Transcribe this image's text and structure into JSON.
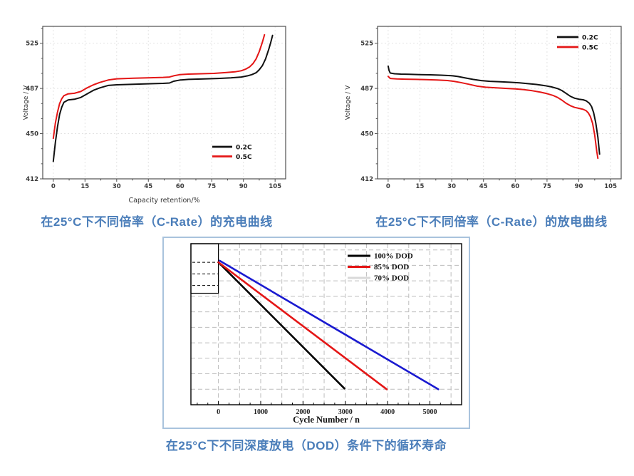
{
  "page": {
    "background": "#ffffff"
  },
  "captions": {
    "charge": "在25°C下不同倍率（C-Rate）的充电曲线",
    "discharge": "在25°C下不同倍率（C-Rate）的放电曲线",
    "cycle_life": "在25°C下不同深度放电（DOD）条件下的循环寿命",
    "color": "#4a7db9"
  },
  "chart_data": [
    {
      "id": "charge-chart",
      "type": "line",
      "title": "在25°C下不同倍率（C-Rate）的充电曲线",
      "xlabel": "Capacity retention/%",
      "ylabel": "Voltage / V",
      "xlim": [
        -5,
        110
      ],
      "ylim": [
        412.5,
        539
      ],
      "xticks": [
        0,
        15,
        30,
        45,
        60,
        75,
        90,
        105
      ],
      "yticks": [
        {
          "v": 412.5,
          "label": "412"
        },
        {
          "v": 450,
          "label": "450"
        },
        {
          "v": 487.5,
          "label": "487"
        },
        {
          "v": 525,
          "label": "525"
        }
      ],
      "grid": true,
      "legend_position": "bottom-right",
      "series": [
        {
          "name": "0.2C",
          "color": "#111111",
          "points": [
            [
              0,
              427
            ],
            [
              1,
              443
            ],
            [
              2,
              456
            ],
            [
              3,
              466
            ],
            [
              4,
              472
            ],
            [
              5,
              476
            ],
            [
              7,
              478
            ],
            [
              10,
              478.5
            ],
            [
              13,
              480
            ],
            [
              16,
              483
            ],
            [
              19,
              486
            ],
            [
              22,
              488
            ],
            [
              26,
              490
            ],
            [
              30,
              490.5
            ],
            [
              38,
              491
            ],
            [
              46,
              491.4
            ],
            [
              52,
              491.7
            ],
            [
              55,
              492
            ],
            [
              57,
              493.5
            ],
            [
              60,
              494.5
            ],
            [
              64,
              495
            ],
            [
              70,
              495.3
            ],
            [
              78,
              495.8
            ],
            [
              84,
              496.3
            ],
            [
              89,
              497
            ],
            [
              92,
              498
            ],
            [
              94,
              499
            ],
            [
              96,
              500.5
            ],
            [
              97.5,
              503
            ],
            [
              99,
              506.5
            ],
            [
              100.5,
              512
            ],
            [
              102,
              520
            ],
            [
              103,
              526
            ],
            [
              103.8,
              531.5
            ]
          ]
        },
        {
          "name": "0.5C",
          "color": "#e41616",
          "points": [
            [
              0,
              446
            ],
            [
              1,
              459
            ],
            [
              2,
              468
            ],
            [
              3,
              475
            ],
            [
              4,
              479
            ],
            [
              5,
              481.5
            ],
            [
              7,
              483
            ],
            [
              10,
              483.5
            ],
            [
              13,
              485
            ],
            [
              16,
              488
            ],
            [
              19,
              490.5
            ],
            [
              22,
              492.5
            ],
            [
              26,
              494.5
            ],
            [
              30,
              495.5
            ],
            [
              38,
              496
            ],
            [
              46,
              496.4
            ],
            [
              52,
              496.7
            ],
            [
              55,
              497
            ],
            [
              57,
              498
            ],
            [
              60,
              499
            ],
            [
              64,
              499.4
            ],
            [
              70,
              499.7
            ],
            [
              76,
              500
            ],
            [
              82,
              500.7
            ],
            [
              86,
              501.3
            ],
            [
              89,
              502.2
            ],
            [
              91,
              503.5
            ],
            [
              93,
              505.5
            ],
            [
              94.5,
              508
            ],
            [
              96,
              512
            ],
            [
              97.5,
              518
            ],
            [
              99,
              526
            ],
            [
              100,
              532
            ]
          ]
        }
      ]
    },
    {
      "id": "discharge-chart",
      "type": "line",
      "title": "在25°C下不同倍率（C-Rate）的放电曲线",
      "xlabel": "",
      "ylabel": "Voltage / V",
      "xlim": [
        -5,
        110
      ],
      "ylim": [
        412.5,
        539
      ],
      "xticks": [
        0,
        15,
        30,
        45,
        60,
        75,
        90,
        105
      ],
      "yticks": [
        {
          "v": 412.5,
          "label": "412"
        },
        {
          "v": 450,
          "label": "450"
        },
        {
          "v": 487.5,
          "label": "487"
        },
        {
          "v": 525,
          "label": "525"
        }
      ],
      "grid": true,
      "legend_position": "top-right",
      "series": [
        {
          "name": "0.2C",
          "color": "#111111",
          "points": [
            [
              0,
              506
            ],
            [
              0.4,
              502.5
            ],
            [
              1,
              500.3
            ],
            [
              3,
              499.7
            ],
            [
              6,
              499.4
            ],
            [
              10,
              499.2
            ],
            [
              15,
              499
            ],
            [
              20,
              498.8
            ],
            [
              25,
              498.5
            ],
            [
              30,
              498.1
            ],
            [
              33,
              497.4
            ],
            [
              36,
              496.4
            ],
            [
              40,
              495
            ],
            [
              44,
              494
            ],
            [
              48,
              493.4
            ],
            [
              53,
              493
            ],
            [
              58,
              492.6
            ],
            [
              62,
              492.1
            ],
            [
              66,
              491.5
            ],
            [
              70,
              490.8
            ],
            [
              74,
              489.8
            ],
            [
              77,
              488.8
            ],
            [
              80,
              487.4
            ],
            [
              82,
              485.8
            ],
            [
              84,
              483.4
            ],
            [
              86,
              481
            ],
            [
              88,
              479.4
            ],
            [
              90,
              478.6
            ],
            [
              92,
              478.1
            ],
            [
              93.5,
              477.2
            ],
            [
              95,
              475.2
            ],
            [
              96,
              472.5
            ],
            [
              97,
              467.5
            ],
            [
              98,
              459
            ],
            [
              99,
              447
            ],
            [
              99.8,
              433
            ]
          ]
        },
        {
          "name": "0.5C",
          "color": "#e41616",
          "points": [
            [
              0,
              497.5
            ],
            [
              1,
              495.8
            ],
            [
              4,
              495.4
            ],
            [
              8,
              495.2
            ],
            [
              13,
              495
            ],
            [
              18,
              494.8
            ],
            [
              23,
              494.5
            ],
            [
              28,
              494.1
            ],
            [
              31,
              493.4
            ],
            [
              34,
              492.5
            ],
            [
              38,
              491
            ],
            [
              42,
              489.4
            ],
            [
              46,
              488.5
            ],
            [
              51,
              488
            ],
            [
              56,
              487.5
            ],
            [
              60,
              487.1
            ],
            [
              64,
              486.5
            ],
            [
              68,
              485.6
            ],
            [
              72,
              484.4
            ],
            [
              75,
              483.2
            ],
            [
              78,
              481.6
            ],
            [
              80,
              480
            ],
            [
              82,
              477.8
            ],
            [
              84,
              475.2
            ],
            [
              86,
              473.2
            ],
            [
              88,
              471.8
            ],
            [
              90,
              471
            ],
            [
              92,
              470.2
            ],
            [
              93.5,
              469
            ],
            [
              94.5,
              467.2
            ],
            [
              95.5,
              464
            ],
            [
              96.5,
              458.5
            ],
            [
              97.5,
              449
            ],
            [
              98.5,
              435
            ],
            [
              99,
              429.5
            ]
          ]
        }
      ]
    },
    {
      "id": "cycle-chart",
      "type": "line",
      "title": "在25°C下不同深度放电（DOD）条件下的循环寿命",
      "xlabel": "Cycle Number / n",
      "ylabel": "",
      "xlim": [
        -650,
        5750
      ],
      "ylim": [
        0,
        10.4
      ],
      "xticks": [
        0,
        1000,
        2000,
        3000,
        4000,
        5000
      ],
      "yticks": [],
      "grid": "dashed",
      "legend_position": "top-right",
      "series": [
        {
          "name": "100% DOD",
          "color": "#000000",
          "points": [
            [
              0,
              9.2
            ],
            [
              2980,
              1.05
            ]
          ]
        },
        {
          "name": "85% DOD",
          "color": "#e41616",
          "points": [
            [
              0,
              9.2
            ],
            [
              3980,
              1.0
            ]
          ]
        },
        {
          "name": "70% DOD",
          "color": "#1a1ad0",
          "legend_swatch": "#d9d9d9",
          "points": [
            [
              30,
              9.3
            ],
            [
              5200,
              1.0
            ]
          ]
        }
      ]
    }
  ]
}
